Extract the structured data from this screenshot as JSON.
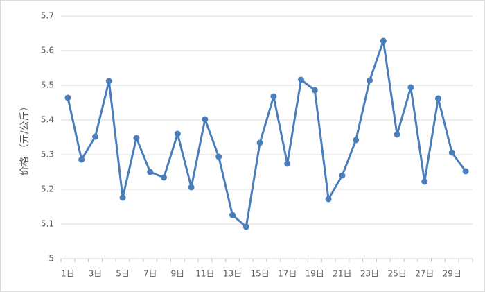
{
  "chart_data": {
    "type": "line",
    "y_label": "价格 （元/公斤）",
    "categories": [
      "1日",
      null,
      "3日",
      null,
      "5日",
      null,
      "7日",
      null,
      "9日",
      null,
      "11日",
      null,
      "13日",
      null,
      "15日",
      null,
      "17日",
      null,
      "19日",
      null,
      "21日",
      null,
      "23日",
      null,
      "25日",
      null,
      "27日",
      null,
      "29日",
      null
    ],
    "values": [
      5.464,
      5.286,
      5.352,
      5.512,
      5.176,
      5.348,
      5.25,
      5.234,
      5.36,
      5.206,
      5.402,
      5.294,
      5.126,
      5.092,
      5.334,
      5.468,
      5.274,
      5.516,
      5.486,
      5.172,
      5.24,
      5.342,
      5.514,
      5.628,
      5.358,
      5.494,
      5.222,
      5.462,
      5.306,
      5.252
    ],
    "color": "#4a7ebb",
    "ylim": [
      5,
      5.7
    ],
    "yticks": [
      5,
      5.1,
      5.2,
      5.3,
      5.4,
      5.5,
      5.6,
      5.7
    ],
    "grid": true
  }
}
